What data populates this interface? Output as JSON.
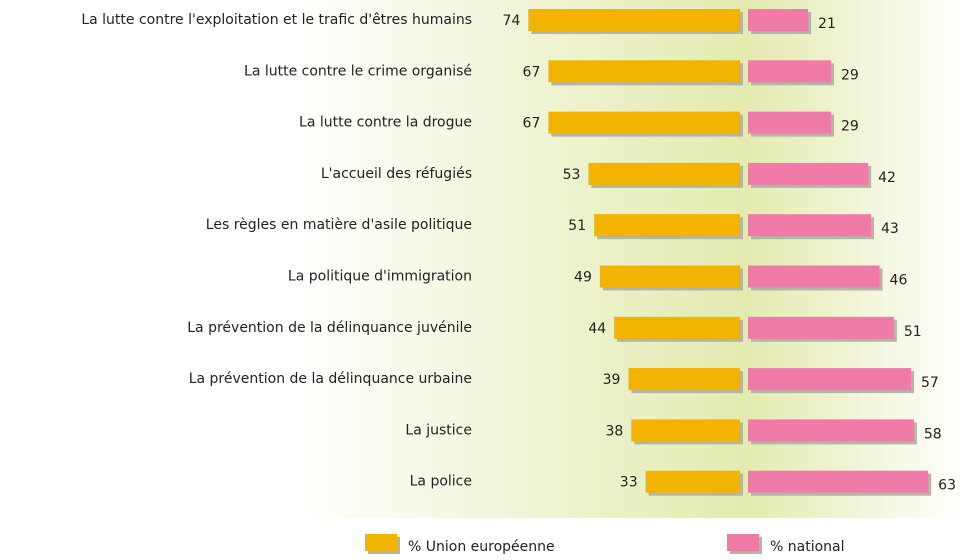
{
  "chart_data": {
    "type": "bar",
    "orientation": "butterfly",
    "categories": [
      "La lutte contre l'exploitation et le trafic d'êtres humains",
      "La lutte contre le crime organisé",
      "La lutte contre la drogue",
      "L'accueil des réfugiés",
      "Les règles en matière d'asile politique",
      "La politique d'immigration",
      "La prévention de la délinquance juvénile",
      "La prévention de la délinquance urbaine",
      "La justice",
      "La police"
    ],
    "series": [
      {
        "name": "% Union européenne",
        "color": "#f2b400",
        "values": [
          74,
          67,
          67,
          53,
          51,
          49,
          44,
          39,
          38,
          33
        ]
      },
      {
        "name": "% national",
        "color": "#f07aa8",
        "values": [
          21,
          29,
          29,
          42,
          43,
          46,
          51,
          57,
          58,
          63
        ]
      }
    ]
  }
}
